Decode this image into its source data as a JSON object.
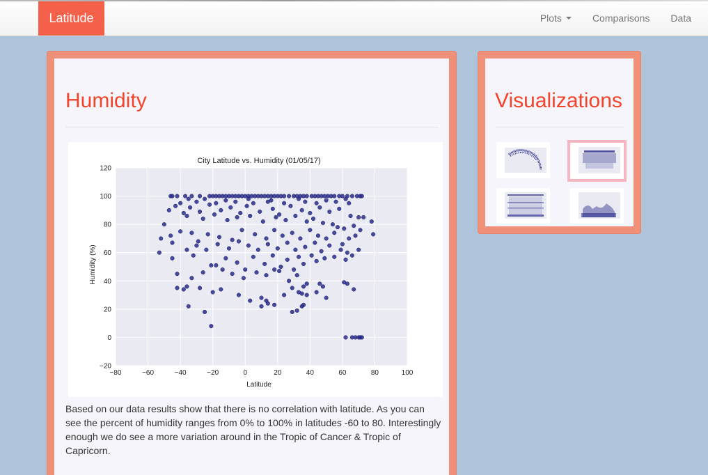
{
  "navbar": {
    "brand": "Latitude",
    "links": [
      {
        "label": "Plots",
        "dropdown": true
      },
      {
        "label": "Comparisons"
      },
      {
        "label": "Data"
      }
    ]
  },
  "main": {
    "title": "Humidity",
    "description": "Based on our data results show that there is no correlation with latitude. As you can see the percent of humidity ranges from 0% to 100% in latitudes -60 to 80. Interestingly enough we do see a more variation around in the Tropic of Cancer & Tropic of Capricorn."
  },
  "sidebar": {
    "title": "Visualizations",
    "thumbnails": [
      {
        "name": "thumb-max-temp",
        "selected": false
      },
      {
        "name": "thumb-humidity",
        "selected": true
      },
      {
        "name": "thumb-cloudiness",
        "selected": false
      },
      {
        "name": "thumb-wind-speed",
        "selected": false
      }
    ]
  },
  "colors": {
    "brand": "#f4614b",
    "panel_border": "#ef9079",
    "title": "#f2432b",
    "background": "#aec4db",
    "marker": "#2a2d8c",
    "plot_bg": "#eaeaf2"
  },
  "chart_data": {
    "type": "scatter",
    "title": "City Latitude vs. Humidity (01/05/17)",
    "xlabel": "Latitude",
    "ylabel": "Humidity (%)",
    "xlim": [
      -80,
      100
    ],
    "ylim": [
      -20,
      120
    ],
    "xticks": [
      -80,
      -60,
      -40,
      -20,
      0,
      20,
      40,
      60,
      80,
      100
    ],
    "yticks": [
      -20,
      0,
      20,
      40,
      60,
      80,
      100,
      120
    ],
    "grid": true,
    "points": [
      [
        -46,
        100
      ],
      [
        -45,
        100
      ],
      [
        -42,
        100
      ],
      [
        -37,
        100
      ],
      [
        -33,
        100
      ],
      [
        -28,
        100
      ],
      [
        -22,
        100
      ],
      [
        -20,
        100
      ],
      [
        -18,
        100
      ],
      [
        -16,
        100
      ],
      [
        -14,
        100
      ],
      [
        -12,
        100
      ],
      [
        -10,
        100
      ],
      [
        -8,
        100
      ],
      [
        -6,
        100
      ],
      [
        -4,
        100
      ],
      [
        -2,
        100
      ],
      [
        0,
        100
      ],
      [
        2,
        100
      ],
      [
        4,
        100
      ],
      [
        6,
        100
      ],
      [
        8,
        100
      ],
      [
        10,
        100
      ],
      [
        12,
        100
      ],
      [
        14,
        100
      ],
      [
        16,
        100
      ],
      [
        18,
        100
      ],
      [
        20,
        100
      ],
      [
        22,
        100
      ],
      [
        24,
        100
      ],
      [
        27,
        100
      ],
      [
        30,
        100
      ],
      [
        32,
        100
      ],
      [
        34,
        100
      ],
      [
        36,
        100
      ],
      [
        38,
        100
      ],
      [
        41,
        100
      ],
      [
        43,
        100
      ],
      [
        45,
        100
      ],
      [
        47,
        100
      ],
      [
        49,
        100
      ],
      [
        51,
        100
      ],
      [
        53,
        100
      ],
      [
        55,
        100
      ],
      [
        58,
        100
      ],
      [
        60,
        100
      ],
      [
        63,
        100
      ],
      [
        66,
        100
      ],
      [
        69,
        100
      ],
      [
        71,
        100
      ],
      [
        72,
        100
      ],
      [
        -35,
        98
      ],
      [
        -25,
        98
      ],
      [
        -12,
        97
      ],
      [
        2,
        98
      ],
      [
        16,
        97
      ],
      [
        33,
        98
      ],
      [
        50,
        97
      ],
      [
        62,
        98
      ],
      [
        -40,
        95
      ],
      [
        -30,
        96
      ],
      [
        -18,
        95
      ],
      [
        -6,
        96
      ],
      [
        5,
        95
      ],
      [
        14,
        96
      ],
      [
        24,
        95
      ],
      [
        37,
        96
      ],
      [
        44,
        95
      ],
      [
        56,
        96
      ],
      [
        64,
        95
      ],
      [
        -50,
        80
      ],
      [
        -47,
        90
      ],
      [
        -43,
        93
      ],
      [
        -38,
        88
      ],
      [
        -34,
        92
      ],
      [
        -28,
        89
      ],
      [
        -22,
        94
      ],
      [
        -15,
        90
      ],
      [
        -9,
        92
      ],
      [
        -3,
        88
      ],
      [
        1,
        93
      ],
      [
        9,
        89
      ],
      [
        17,
        91
      ],
      [
        21,
        87
      ],
      [
        28,
        93
      ],
      [
        35,
        90
      ],
      [
        40,
        88
      ],
      [
        46,
        92
      ],
      [
        52,
        89
      ],
      [
        58,
        91
      ],
      [
        65,
        86
      ],
      [
        70,
        85
      ],
      [
        73,
        85
      ],
      [
        78,
        82
      ],
      [
        79,
        73
      ],
      [
        -36,
        86
      ],
      [
        -26,
        84
      ],
      [
        -19,
        87
      ],
      [
        -11,
        83
      ],
      [
        -5,
        85
      ],
      [
        3,
        86
      ],
      [
        11,
        82
      ],
      [
        19,
        85
      ],
      [
        25,
        83
      ],
      [
        31,
        86
      ],
      [
        38,
        82
      ],
      [
        42,
        84
      ],
      [
        48,
        81
      ],
      [
        54,
        80
      ],
      [
        57,
        78
      ],
      [
        61,
        77
      ],
      [
        67,
        79
      ],
      [
        71,
        76
      ],
      [
        -52,
        70
      ],
      [
        -46,
        72
      ],
      [
        -40,
        75
      ],
      [
        -33,
        74
      ],
      [
        -29,
        68
      ],
      [
        -23,
        73
      ],
      [
        -16,
        71
      ],
      [
        -8,
        69
      ],
      [
        -2,
        76
      ],
      [
        6,
        73
      ],
      [
        13,
        70
      ],
      [
        18,
        76
      ],
      [
        23,
        72
      ],
      [
        29,
        74
      ],
      [
        34,
        70
      ],
      [
        40,
        76
      ],
      [
        45,
        72
      ],
      [
        50,
        70
      ],
      [
        55,
        74
      ],
      [
        60,
        66
      ],
      [
        64,
        70
      ],
      [
        68,
        72
      ],
      [
        -53,
        60
      ],
      [
        -45,
        67
      ],
      [
        -36,
        62
      ],
      [
        -30,
        65
      ],
      [
        -24,
        62
      ],
      [
        -17,
        66
      ],
      [
        -10,
        63
      ],
      [
        -4,
        68
      ],
      [
        2,
        65
      ],
      [
        8,
        62
      ],
      [
        14,
        66
      ],
      [
        20,
        63
      ],
      [
        26,
        67
      ],
      [
        31,
        62
      ],
      [
        37,
        64
      ],
      [
        43,
        67
      ],
      [
        47,
        61
      ],
      [
        52,
        65
      ],
      [
        59,
        62
      ],
      [
        63,
        60
      ],
      [
        66,
        58
      ],
      [
        70,
        62
      ],
      [
        -45,
        56
      ],
      [
        -32,
        58
      ],
      [
        -21,
        51
      ],
      [
        -18,
        51
      ],
      [
        -12,
        56
      ],
      [
        -5,
        53
      ],
      [
        0,
        48
      ],
      [
        5,
        57
      ],
      [
        12,
        52
      ],
      [
        17,
        58
      ],
      [
        22,
        50
      ],
      [
        26,
        55
      ],
      [
        30,
        48
      ],
      [
        33,
        57
      ],
      [
        36,
        52
      ],
      [
        41,
        58
      ],
      [
        44,
        54
      ],
      [
        49,
        56
      ],
      [
        55,
        57
      ],
      [
        62,
        55
      ],
      [
        -42,
        45
      ],
      [
        -33,
        42
      ],
      [
        -26,
        46
      ],
      [
        -14,
        48
      ],
      [
        -8,
        45
      ],
      [
        -1,
        42
      ],
      [
        7,
        46
      ],
      [
        13,
        44
      ],
      [
        18,
        48
      ],
      [
        21,
        47
      ],
      [
        27,
        40
      ],
      [
        32,
        44
      ],
      [
        36,
        36
      ],
      [
        38,
        38
      ],
      [
        46,
        38
      ],
      [
        48,
        36
      ],
      [
        61,
        39
      ],
      [
        63,
        38
      ],
      [
        -42,
        35
      ],
      [
        -38,
        34
      ],
      [
        -36,
        36
      ],
      [
        -28,
        35
      ],
      [
        -20,
        32
      ],
      [
        -15,
        34
      ],
      [
        -4,
        30
      ],
      [
        3,
        26
      ],
      [
        10,
        28
      ],
      [
        13,
        26
      ],
      [
        18,
        23
      ],
      [
        24,
        30
      ],
      [
        29,
        35
      ],
      [
        33,
        32
      ],
      [
        35,
        31
      ],
      [
        38,
        30
      ],
      [
        44,
        32
      ],
      [
        50,
        28
      ],
      [
        67,
        34
      ],
      [
        -35,
        22
      ],
      [
        -25,
        18
      ],
      [
        -21,
        8
      ],
      [
        10,
        22
      ],
      [
        14,
        24
      ],
      [
        29,
        18
      ],
      [
        32,
        19
      ],
      [
        35,
        22
      ],
      [
        36,
        23
      ],
      [
        62,
        0
      ],
      [
        66,
        0
      ],
      [
        68,
        0
      ],
      [
        70,
        0
      ],
      [
        71,
        0
      ],
      [
        72,
        0
      ]
    ]
  }
}
